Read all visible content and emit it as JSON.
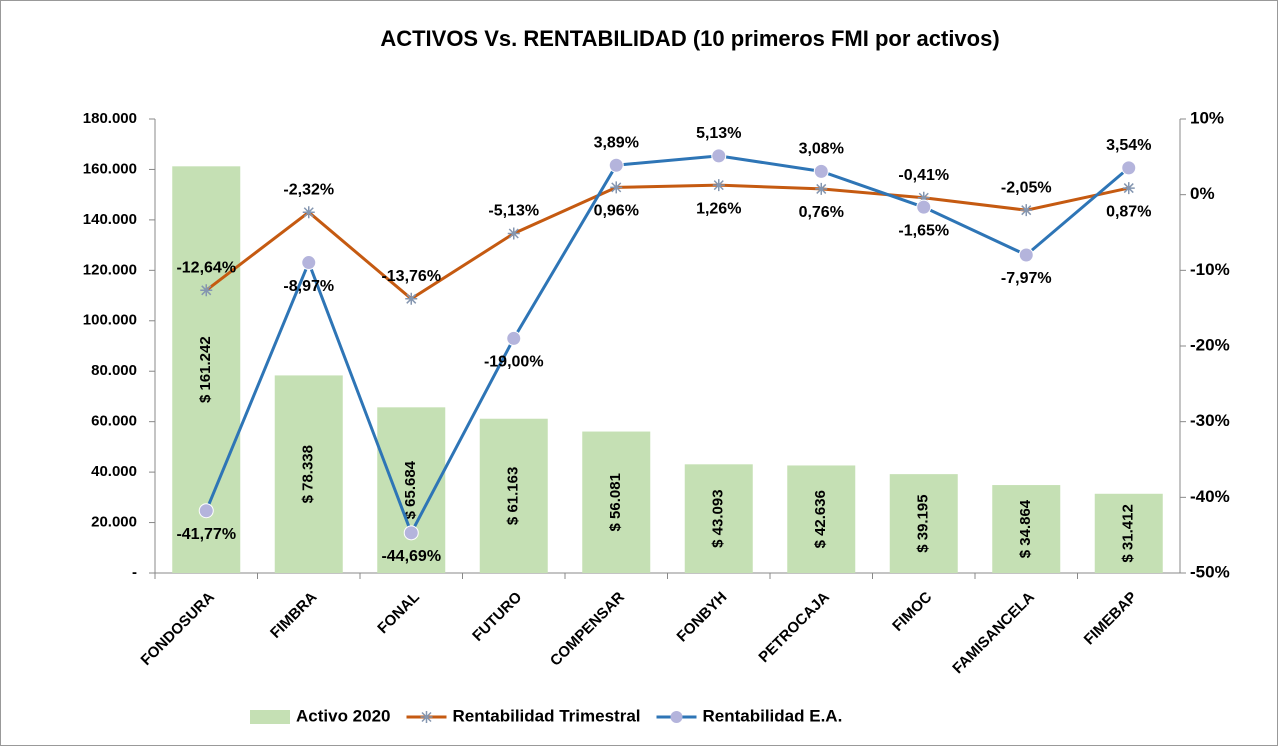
{
  "chart_data": {
    "type": "bar",
    "title": "ACTIVOS Vs. RENTABILIDAD (10 primeros FMI por activos)",
    "categories": [
      "FONDOSURA",
      "FIMBRA",
      "FONAL",
      "FUTURO",
      "COMPENSAR",
      "FONBYH",
      "PETROCAJA",
      "FIMOC",
      "FAMISANCELA",
      "FIMEBAP"
    ],
    "series": [
      {
        "name": "Activo 2020",
        "type": "bar",
        "color": "#c5e0b4",
        "values": [
          161242,
          78338,
          65684,
          61163,
          56081,
          43093,
          42636,
          39195,
          34864,
          31412
        ],
        "value_labels": [
          "$ 161.242",
          "$ 78.338",
          "$ 65.684",
          "$ 61.163",
          "$ 56.081",
          "$ 43.093",
          "$ 42.636",
          "$ 39.195",
          "$ 34.864",
          "$ 31.412"
        ]
      },
      {
        "name": "Rentabilidad Trimestral",
        "type": "line",
        "axis": "y2",
        "color": "#c55a11",
        "marker": "star",
        "marker_color": "#8496b0",
        "values": [
          -12.64,
          -2.32,
          -13.76,
          -5.13,
          0.96,
          1.26,
          0.76,
          -0.41,
          -2.05,
          0.87
        ],
        "value_labels": [
          "-12,64%",
          "-2,32%",
          "-13,76%",
          "-5,13%",
          "0,96%",
          "1,26%",
          "0,76%",
          "-0,41%",
          "-2,05%",
          "0,87%"
        ]
      },
      {
        "name": "Rentabilidad E.A.",
        "type": "line",
        "axis": "y2",
        "color": "#2e75b6",
        "marker": "circle",
        "marker_color": "#b4b4dc",
        "values": [
          -41.77,
          -8.97,
          -44.69,
          -19.0,
          3.89,
          5.13,
          3.08,
          -1.65,
          -7.97,
          3.54
        ],
        "value_labels": [
          "-41,77%",
          "-8,97%",
          "-44,69%",
          "-19,00%",
          "3,89%",
          "5,13%",
          "3,08%",
          "-1,65%",
          "-7,97%",
          "3,54%"
        ]
      }
    ],
    "ylim": [
      0,
      180000
    ],
    "yticks": [
      {
        "value": 0,
        "label": "-"
      },
      {
        "value": 20000,
        "label": "20.000"
      },
      {
        "value": 40000,
        "label": "40.000"
      },
      {
        "value": 60000,
        "label": "60.000"
      },
      {
        "value": 80000,
        "label": "80.000"
      },
      {
        "value": 100000,
        "label": "100.000"
      },
      {
        "value": 120000,
        "label": "120.000"
      },
      {
        "value": 140000,
        "label": "140.000"
      },
      {
        "value": 160000,
        "label": "160.000"
      },
      {
        "value": 180000,
        "label": "180.000"
      }
    ],
    "y2lim": [
      -50,
      10
    ],
    "y2ticks": [
      {
        "value": -50,
        "label": "-50%"
      },
      {
        "value": -40,
        "label": "-40%"
      },
      {
        "value": -30,
        "label": "-30%"
      },
      {
        "value": -20,
        "label": "-20%"
      },
      {
        "value": -10,
        "label": "-10%"
      },
      {
        "value": 0,
        "label": "0%"
      },
      {
        "value": 10,
        "label": "10%"
      }
    ],
    "legend": "bottom"
  }
}
